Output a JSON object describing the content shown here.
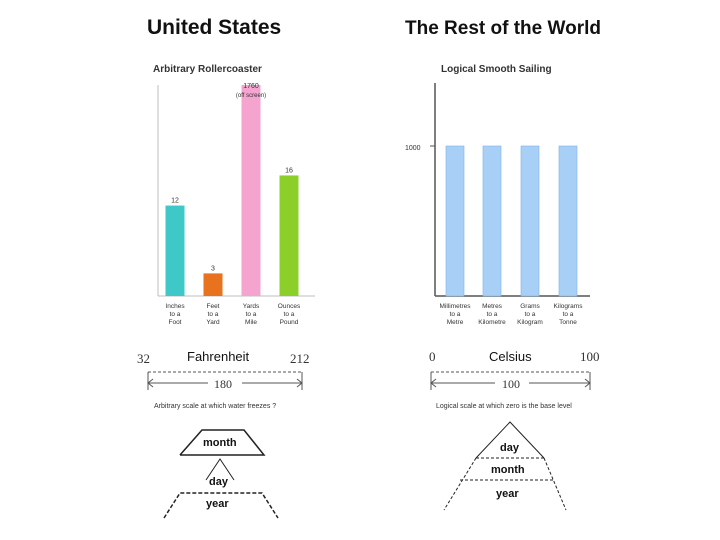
{
  "left": {
    "heading": "United States",
    "scale_low": "32",
    "scale_name": "Fahrenheit",
    "scale_high": "212",
    "scale_range": "180",
    "scale_caption": "Arbitrary scale at which water freezes ?",
    "date_order": [
      "month",
      "day",
      "year"
    ]
  },
  "right": {
    "heading": "The Rest of the World",
    "scale_low": "0",
    "scale_name": "Celsius",
    "scale_high": "100",
    "scale_range": "100",
    "scale_caption": "Logical scale at which zero is the base level",
    "date_order": [
      "day",
      "month",
      "year"
    ]
  },
  "chart_data": [
    {
      "type": "bar",
      "title": "Arbitrary Rollercoaster",
      "categories": [
        "Inches to a Foot",
        "Feet to a Yard",
        "Yards to a Mile",
        "Ounces to a Pound"
      ],
      "category_lines": [
        [
          "Inches",
          "to a",
          "Foot"
        ],
        [
          "Feet",
          "to a",
          "Yard"
        ],
        [
          "Yards",
          "to a",
          "Mile"
        ],
        [
          "Ounces",
          "to a",
          "Pound"
        ]
      ],
      "values": [
        12,
        3,
        1760,
        16
      ],
      "data_labels": [
        "12",
        "3",
        "1760",
        "16"
      ],
      "data_label_notes": [
        "",
        "",
        "(off screen)",
        ""
      ],
      "colors": [
        "#3ec8c8",
        "#e8721e",
        "#f5a3cf",
        "#8ccf2a"
      ],
      "visible_max": 28,
      "ylim": [
        0,
        28
      ],
      "grid": false
    },
    {
      "type": "bar",
      "title": "Logical Smooth Sailing",
      "categories": [
        "Millimetres to a Metre",
        "Metres to a Kilometre",
        "Grams to a Kilogram",
        "Kilograms to a Tonne"
      ],
      "category_lines": [
        [
          "Millimetres",
          "to a",
          "Metre"
        ],
        [
          "Metres",
          "to a",
          "Kilometre"
        ],
        [
          "Grams",
          "to a",
          "Kilogram"
        ],
        [
          "Kilograms",
          "to a",
          "Tonne"
        ]
      ],
      "values": [
        1000,
        1000,
        1000,
        1000
      ],
      "yticks": [
        "1000"
      ],
      "colors": [
        "#a8d0f7",
        "#a8d0f7",
        "#a8d0f7",
        "#a8d0f7"
      ],
      "ylim": [
        0,
        1420
      ],
      "grid": false
    }
  ]
}
